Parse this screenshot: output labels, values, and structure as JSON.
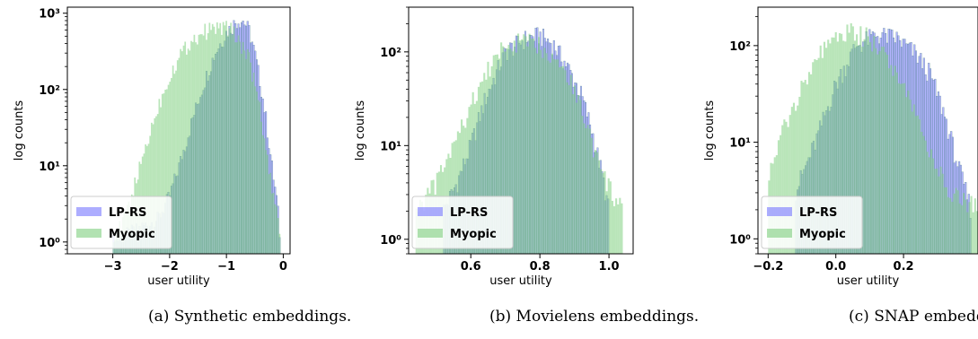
{
  "colors": {
    "lprs": "#7777ff",
    "myopic": "#7fcf7f",
    "overlap_edge": "#3d7a78"
  },
  "chart_data": [
    {
      "type": "histogram",
      "caption": "(a) Synthetic embeddings.",
      "xlabel": "user utility",
      "ylabel": "log counts",
      "log_y": true,
      "xlim": [
        -3.8,
        0.12
      ],
      "ylim": [
        0.7,
        1200
      ],
      "xticks": [
        -3,
        -2,
        -1,
        0
      ],
      "xtick_labels": [
        "−3",
        "−2",
        "−1",
        "0"
      ],
      "yticks": [
        1,
        10,
        100,
        1000
      ],
      "ytick_labels": [
        "10⁰",
        "10¹",
        "10²",
        "10³"
      ],
      "legend": "lower-left",
      "series": [
        {
          "name": "LP-RS",
          "color_key": "lprs",
          "bins": 110,
          "range": [
            -3.0,
            -0.05
          ],
          "profile": [
            [
              -3.0,
              1
            ],
            [
              -2.2,
              2
            ],
            [
              -2.0,
              4
            ],
            [
              -1.8,
              12
            ],
            [
              -1.6,
              40
            ],
            [
              -1.4,
              120
            ],
            [
              -1.2,
              300
            ],
            [
              -1.0,
              560
            ],
            [
              -0.8,
              820
            ],
            [
              -0.7,
              800
            ],
            [
              -0.6,
              600
            ],
            [
              -0.5,
              300
            ],
            [
              -0.4,
              120
            ],
            [
              -0.3,
              40
            ],
            [
              -0.2,
              10
            ],
            [
              -0.1,
              3
            ],
            [
              -0.05,
              1
            ]
          ]
        },
        {
          "name": "Myopic",
          "color_key": "myopic",
          "bins": 110,
          "range": [
            -3.0,
            -0.05
          ],
          "profile": [
            [
              -3.0,
              1
            ],
            [
              -2.8,
              2
            ],
            [
              -2.6,
              6
            ],
            [
              -2.4,
              20
            ],
            [
              -2.2,
              60
            ],
            [
              -2.0,
              150
            ],
            [
              -1.8,
              300
            ],
            [
              -1.6,
              450
            ],
            [
              -1.4,
              580
            ],
            [
              -1.2,
              650
            ],
            [
              -1.0,
              660
            ],
            [
              -0.9,
              600
            ],
            [
              -0.8,
              480
            ],
            [
              -0.6,
              250
            ],
            [
              -0.5,
              120
            ],
            [
              -0.4,
              50
            ],
            [
              -0.3,
              15
            ],
            [
              -0.2,
              5
            ],
            [
              -0.1,
              2
            ],
            [
              -0.05,
              1
            ]
          ]
        }
      ]
    },
    {
      "type": "histogram",
      "caption": "(b) Movielens embeddings.",
      "xlabel": "user utility",
      "ylabel": "log counts",
      "log_y": true,
      "xlim": [
        0.42,
        1.07
      ],
      "ylim": [
        0.7,
        300
      ],
      "xticks": [
        0.6,
        0.8,
        1.0
      ],
      "xtick_labels": [
        "0.6",
        "0.8",
        "1.0"
      ],
      "yticks": [
        1,
        10,
        100
      ],
      "ytick_labels": [
        "10⁰",
        "10¹",
        "10²"
      ],
      "legend": "lower-left",
      "series": [
        {
          "name": "LP-RS",
          "color_key": "lprs",
          "bins": 110,
          "range": [
            0.52,
            1.0
          ],
          "profile": [
            [
              0.52,
              2
            ],
            [
              0.56,
              4
            ],
            [
              0.6,
              10
            ],
            [
              0.64,
              30
            ],
            [
              0.7,
              100
            ],
            [
              0.76,
              140
            ],
            [
              0.8,
              150
            ],
            [
              0.84,
              120
            ],
            [
              0.88,
              70
            ],
            [
              0.92,
              35
            ],
            [
              0.95,
              15
            ],
            [
              0.98,
              5
            ],
            [
              1.0,
              2
            ]
          ]
        },
        {
          "name": "Myopic",
          "color_key": "myopic",
          "bins": 110,
          "range": [
            0.44,
            1.04
          ],
          "profile": [
            [
              0.44,
              2
            ],
            [
              0.5,
              4
            ],
            [
              0.56,
              12
            ],
            [
              0.62,
              40
            ],
            [
              0.68,
              100
            ],
            [
              0.74,
              130
            ],
            [
              0.8,
              120
            ],
            [
              0.86,
              80
            ],
            [
              0.9,
              40
            ],
            [
              0.94,
              15
            ],
            [
              0.98,
              5
            ],
            [
              1.04,
              2
            ]
          ]
        }
      ]
    },
    {
      "type": "histogram",
      "caption": "(c) SNAP embeddings.",
      "xlabel": "user utility",
      "ylabel": "log counts",
      "log_y": true,
      "xlim": [
        -0.23,
        0.42
      ],
      "ylim": [
        0.7,
        250
      ],
      "xticks": [
        -0.2,
        0.0,
        0.2
      ],
      "xtick_labels": [
        "−0.2",
        "0.0",
        "0.2"
      ],
      "yticks": [
        1,
        10,
        100
      ],
      "ytick_labels": [
        "10⁰",
        "10¹",
        "10²"
      ],
      "legend": "lower-left",
      "series": [
        {
          "name": "LP-RS",
          "color_key": "lprs",
          "bins": 110,
          "range": [
            -0.12,
            0.4
          ],
          "profile": [
            [
              -0.12,
              3
            ],
            [
              -0.06,
              10
            ],
            [
              0.0,
              40
            ],
            [
              0.06,
              100
            ],
            [
              0.12,
              130
            ],
            [
              0.18,
              120
            ],
            [
              0.24,
              80
            ],
            [
              0.28,
              50
            ],
            [
              0.32,
              20
            ],
            [
              0.36,
              6
            ],
            [
              0.4,
              2
            ]
          ]
        },
        {
          "name": "Myopic",
          "color_key": "myopic",
          "bins": 110,
          "range": [
            -0.2,
            0.42
          ],
          "profile": [
            [
              -0.2,
              4
            ],
            [
              -0.15,
              15
            ],
            [
              -0.1,
              40
            ],
            [
              -0.05,
              80
            ],
            [
              0.0,
              120
            ],
            [
              0.05,
              140
            ],
            [
              0.1,
              120
            ],
            [
              0.15,
              80
            ],
            [
              0.2,
              40
            ],
            [
              0.25,
              15
            ],
            [
              0.3,
              5
            ],
            [
              0.35,
              3
            ],
            [
              0.42,
              2
            ]
          ]
        }
      ]
    }
  ]
}
